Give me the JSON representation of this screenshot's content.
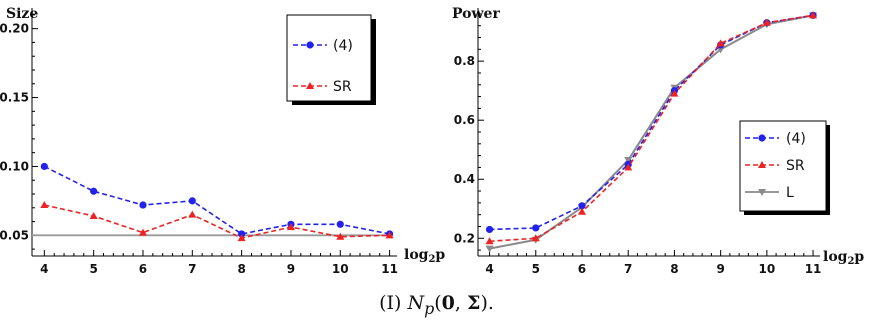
{
  "chart_data": [
    {
      "type": "line",
      "title": "Size",
      "xlabel": "log₂p",
      "x": [
        4,
        5,
        6,
        7,
        8,
        9,
        10,
        11
      ],
      "xlim": [
        3.75,
        11.15
      ],
      "ylim": [
        0.035,
        0.215
      ],
      "yticks": [
        0.05,
        0.1,
        0.15,
        0.2
      ],
      "ytick_labels": [
        "0.05",
        "0.10",
        "0.15",
        "0.20"
      ],
      "legend_position": "top-right",
      "series": [
        {
          "name": "(4)",
          "values": [
            0.1,
            0.082,
            0.072,
            0.075,
            0.051,
            0.058,
            0.058,
            0.051
          ],
          "color": "#2222ee",
          "marker": "circle",
          "dash": true
        },
        {
          "name": "SR",
          "values": [
            0.072,
            0.064,
            0.052,
            0.065,
            0.048,
            0.056,
            0.049,
            0.05
          ],
          "color": "#ee2222",
          "marker": "triangle-up",
          "dash": true
        }
      ],
      "reference_line": {
        "y": 0.05,
        "color": "#999999"
      }
    },
    {
      "type": "line",
      "title": "Power",
      "xlabel": "log₂p",
      "x": [
        4,
        5,
        6,
        7,
        8,
        9,
        10,
        11
      ],
      "xlim": [
        3.75,
        11.15
      ],
      "ylim": [
        0.14,
        0.98
      ],
      "yticks": [
        0.2,
        0.4,
        0.6,
        0.8
      ],
      "ytick_labels": [
        "0.2",
        "0.4",
        "0.6",
        "0.8"
      ],
      "legend_position": "bottom-right",
      "series": [
        {
          "name": "(4)",
          "values": [
            0.23,
            0.235,
            0.31,
            0.45,
            0.7,
            0.855,
            0.93,
            0.955
          ],
          "color": "#2222ee",
          "marker": "circle",
          "dash": true
        },
        {
          "name": "SR",
          "values": [
            0.19,
            0.2,
            0.29,
            0.44,
            0.69,
            0.86,
            0.93,
            0.955
          ],
          "color": "#ee2222",
          "marker": "triangle-up",
          "dash": true
        },
        {
          "name": "L",
          "values": [
            0.165,
            0.195,
            0.305,
            0.465,
            0.71,
            0.84,
            0.925,
            0.955
          ],
          "color": "#8a8a8a",
          "marker": "triangle-down",
          "dash": false
        }
      ]
    }
  ],
  "caption": {
    "prefix": "(I) ",
    "dist": "N",
    "sub": "p",
    "args_open": "(",
    "zero": "0",
    "comma": ", ",
    "sigma": "Σ",
    "args_close": ").",
    "full": "(I) 𝒩p(0, Σ)."
  }
}
